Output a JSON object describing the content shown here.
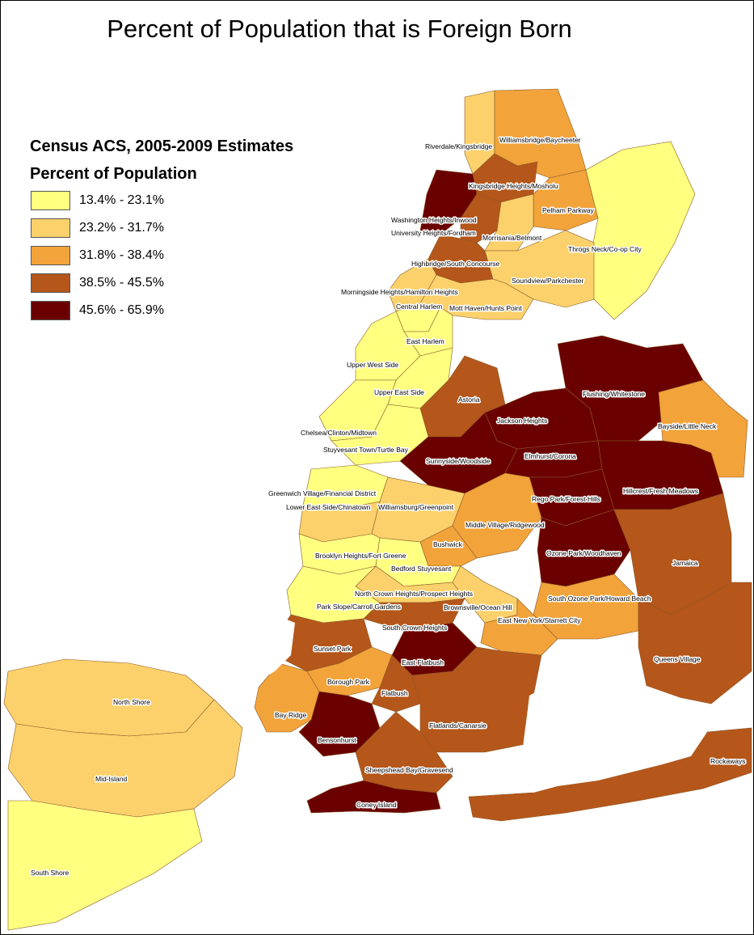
{
  "title": "Percent of Population that is Foreign Born",
  "legend": {
    "title": "Census ACS, 2005-2009 Estimates",
    "subtitle": "Percent of Population",
    "classes": [
      {
        "label": "13.4% - 23.1%",
        "color": "#ffff80"
      },
      {
        "label": "23.2% - 31.7%",
        "color": "#fcd16b"
      },
      {
        "label": "31.8% - 38.4%",
        "color": "#f2a33a"
      },
      {
        "label": "38.5% - 45.5%",
        "color": "#b5561a"
      },
      {
        "label": "45.6% - 65.9%",
        "color": "#6b0000"
      }
    ]
  },
  "districts": [
    {
      "name": "Riverdale/Kingsbridge",
      "class": 1
    },
    {
      "name": "Williamsbridge/Baycheeter",
      "class": 2
    },
    {
      "name": "Kingsbridge Heights/Mosholu",
      "class": 3
    },
    {
      "name": "Washington Heights/Inwood",
      "class": 4
    },
    {
      "name": "University Heights/Fordham",
      "class": 3
    },
    {
      "name": "Pelham Parkway",
      "class": 2
    },
    {
      "name": "Morrisania/Belmont",
      "class": 1
    },
    {
      "name": "Throgs Neck/Co-op City",
      "class": 0
    },
    {
      "name": "Highbridge/South Concourse",
      "class": 3
    },
    {
      "name": "Soundview/Parkchester",
      "class": 1
    },
    {
      "name": "Morningside Heights/Hamilton Heights",
      "class": 1
    },
    {
      "name": "Central Harlem",
      "class": 0
    },
    {
      "name": "Mott Haven/Hunts Point",
      "class": 1
    },
    {
      "name": "East Harlem",
      "class": 0
    },
    {
      "name": "Upper West Side",
      "class": 0
    },
    {
      "name": "Upper East Side",
      "class": 0
    },
    {
      "name": "Astoria",
      "class": 3
    },
    {
      "name": "Flushing/Whitestone",
      "class": 4
    },
    {
      "name": "Jackson Heights",
      "class": 4
    },
    {
      "name": "Bayside/Little Neck",
      "class": 2
    },
    {
      "name": "Chelsea/Clinton/Midtown",
      "class": 0
    },
    {
      "name": "Stuyvesant Town/Turtle Bay",
      "class": 0
    },
    {
      "name": "Sunnyside/Woodside",
      "class": 4
    },
    {
      "name": "Elmhurst/Corona",
      "class": 4
    },
    {
      "name": "Greenwich Village/Financial District",
      "class": 0
    },
    {
      "name": "Rego Park/Forest Hills",
      "class": 4
    },
    {
      "name": "Hillcrest/Fresh Meadows",
      "class": 4
    },
    {
      "name": "Lower East Side/Chinatown",
      "class": 1
    },
    {
      "name": "Williamsburg/Greenpoint",
      "class": 1
    },
    {
      "name": "Middle Village/Ridgewood",
      "class": 2
    },
    {
      "name": "Bushwick",
      "class": 2
    },
    {
      "name": "Ozone Park/Woodhaven",
      "class": 4
    },
    {
      "name": "Brooklyn Heights/Fort Greene",
      "class": 0
    },
    {
      "name": "Jamaica",
      "class": 3
    },
    {
      "name": "Bedford Stuyvesant",
      "class": 0
    },
    {
      "name": "North Crown Heights/Prospect Heights",
      "class": 1
    },
    {
      "name": "South Ozone Park/Howard Beach",
      "class": 2
    },
    {
      "name": "Brownsville/Ocean Hill",
      "class": 1
    },
    {
      "name": "Park Slope/Carroll Gardens",
      "class": 0
    },
    {
      "name": "East New York/Starrett City",
      "class": 2
    },
    {
      "name": "South Crown Heights",
      "class": 3
    },
    {
      "name": "Sunset Park",
      "class": 3
    },
    {
      "name": "East Flatbush",
      "class": 4
    },
    {
      "name": "Queens Village",
      "class": 3
    },
    {
      "name": "Borough Park",
      "class": 2
    },
    {
      "name": "Flatbush",
      "class": 3
    },
    {
      "name": "North Shore",
      "class": 1
    },
    {
      "name": "Bay Ridge",
      "class": 2
    },
    {
      "name": "Flatlands/Canarsie",
      "class": 3
    },
    {
      "name": "Bensonhurst",
      "class": 4
    },
    {
      "name": "Mid-Island",
      "class": 1
    },
    {
      "name": "Sheepshead Bay/Gravesend",
      "class": 3
    },
    {
      "name": "Rockaways",
      "class": 3
    },
    {
      "name": "Coney Island",
      "class": 4
    },
    {
      "name": "South Shore",
      "class": 0
    }
  ]
}
